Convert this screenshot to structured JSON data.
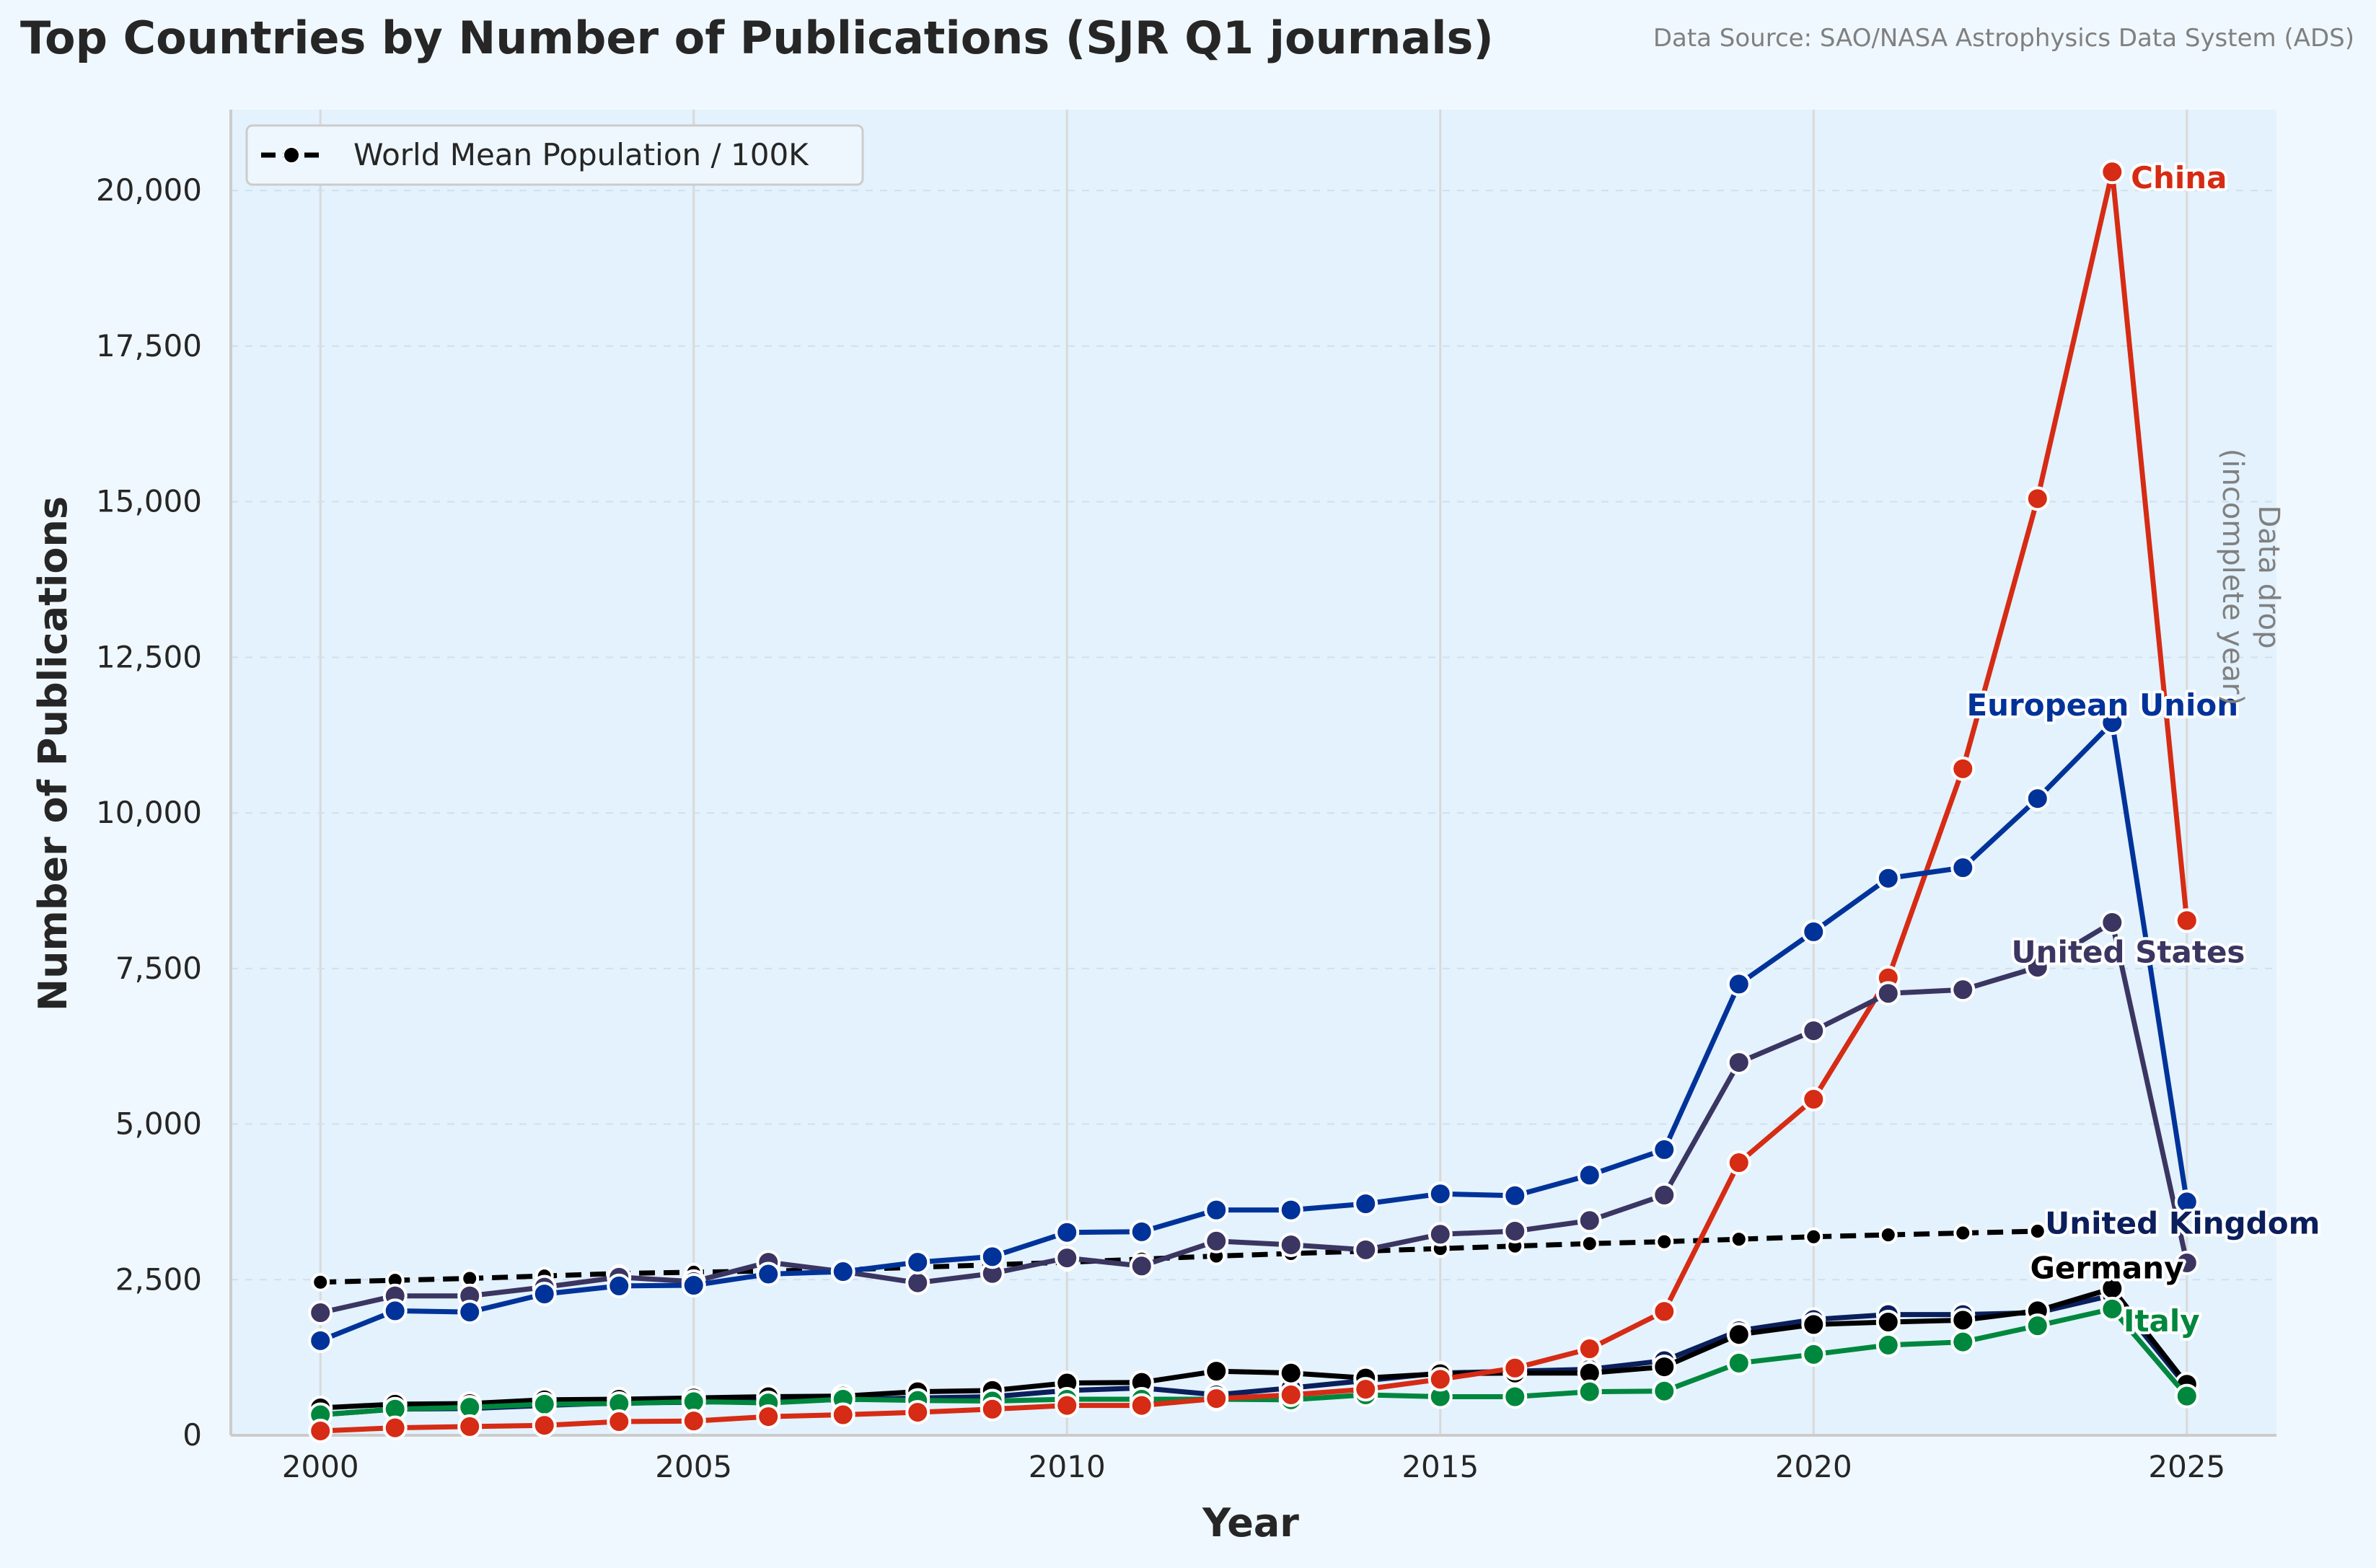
{
  "chart_data": {
    "type": "line",
    "title": "Top Countries by Number of Publications (SJR Q1 journals)",
    "source": "Data Source: SAO/NASA Astrophysics Data System (ADS)",
    "xlabel": "Year",
    "ylabel": "Number of Publications",
    "xlim": [
      1998.8,
      2026.2
    ],
    "ylim": [
      0,
      21300
    ],
    "x_ticks": [
      "2000",
      "2005",
      "2010",
      "2015",
      "2020",
      "2025"
    ],
    "y_ticks": [
      "0",
      "2,500",
      "5,000",
      "7,500",
      "10,000",
      "12,500",
      "15,000",
      "17,500",
      "20,000"
    ],
    "grid": true,
    "legend": {
      "position": "top-left",
      "entries": [
        "World Mean Population / 100K"
      ]
    },
    "annotation": {
      "lines": [
        "Data drop",
        "(incomplete year)"
      ]
    },
    "series": [
      {
        "name": "World Mean Population / 100K",
        "color": "#000000",
        "dashed": true,
        "x": [
          2000,
          2001,
          2002,
          2003,
          2004,
          2005,
          2006,
          2007,
          2008,
          2009,
          2010,
          2011,
          2012,
          2013,
          2014,
          2015,
          2016,
          2017,
          2018,
          2019,
          2020,
          2021,
          2022,
          2023
        ],
        "values": [
          2460,
          2490,
          2520,
          2560,
          2600,
          2620,
          2640,
          2660,
          2700,
          2740,
          2780,
          2830,
          2880,
          2920,
          2960,
          3000,
          3040,
          3080,
          3110,
          3150,
          3190,
          3220,
          3250,
          3280
        ]
      },
      {
        "name": "United Kingdom",
        "color": "#0a1f5c",
        "x": [
          2000,
          2001,
          2002,
          2003,
          2004,
          2005,
          2006,
          2007,
          2008,
          2009,
          2010,
          2011,
          2012,
          2013,
          2014,
          2015,
          2016,
          2017,
          2018,
          2019,
          2020,
          2021,
          2022,
          2023,
          2024,
          2025
        ],
        "values": [
          330,
          420,
          430,
          480,
          520,
          530,
          560,
          570,
          600,
          620,
          720,
          760,
          650,
          760,
          880,
          1000,
          1030,
          1060,
          1200,
          1680,
          1860,
          1940,
          1940,
          1970,
          2250,
          780
        ]
      },
      {
        "name": "Germany",
        "color": "#000000",
        "x": [
          2000,
          2001,
          2002,
          2003,
          2004,
          2005,
          2006,
          2007,
          2008,
          2009,
          2010,
          2011,
          2012,
          2013,
          2014,
          2015,
          2016,
          2017,
          2018,
          2019,
          2020,
          2021,
          2022,
          2023,
          2024,
          2025
        ],
        "values": [
          440,
          500,
          510,
          570,
          580,
          600,
          620,
          630,
          700,
          720,
          840,
          850,
          1030,
          1000,
          920,
          990,
          1000,
          1000,
          1100,
          1620,
          1780,
          1820,
          1850,
          2000,
          2360,
          820
        ]
      },
      {
        "name": "Italy",
        "color": "#00873e",
        "x": [
          2000,
          2001,
          2002,
          2003,
          2004,
          2005,
          2006,
          2007,
          2008,
          2009,
          2010,
          2011,
          2012,
          2013,
          2014,
          2015,
          2016,
          2017,
          2018,
          2019,
          2020,
          2021,
          2022,
          2023,
          2024,
          2025
        ],
        "values": [
          330,
          420,
          450,
          500,
          510,
          540,
          520,
          580,
          560,
          550,
          580,
          580,
          580,
          570,
          650,
          620,
          620,
          700,
          710,
          1160,
          1300,
          1450,
          1500,
          1760,
          2030,
          630
        ]
      },
      {
        "name": "China",
        "color": "#d62b14",
        "x": [
          2000,
          2001,
          2002,
          2003,
          2004,
          2005,
          2006,
          2007,
          2008,
          2009,
          2010,
          2011,
          2012,
          2013,
          2014,
          2015,
          2016,
          2017,
          2018,
          2019,
          2020,
          2021,
          2022,
          2023,
          2024,
          2025
        ],
        "values": [
          70,
          120,
          140,
          160,
          220,
          230,
          300,
          330,
          370,
          420,
          480,
          480,
          590,
          650,
          740,
          900,
          1080,
          1390,
          1990,
          4380,
          5400,
          7350,
          10710,
          15050,
          20300,
          8270
        ]
      },
      {
        "name": "United States",
        "color": "#3b3562",
        "x": [
          2000,
          2001,
          2002,
          2003,
          2004,
          2005,
          2006,
          2007,
          2008,
          2009,
          2010,
          2011,
          2012,
          2013,
          2014,
          2015,
          2016,
          2017,
          2018,
          2019,
          2020,
          2021,
          2022,
          2023,
          2024,
          2025
        ],
        "values": [
          1970,
          2240,
          2240,
          2380,
          2540,
          2470,
          2780,
          2630,
          2450,
          2600,
          2850,
          2720,
          3120,
          3060,
          2980,
          3230,
          3280,
          3450,
          3860,
          5990,
          6500,
          7100,
          7160,
          7520,
          8240,
          2770
        ]
      },
      {
        "name": "European Union",
        "color": "#003399",
        "x": [
          2000,
          2001,
          2002,
          2003,
          2004,
          2005,
          2006,
          2007,
          2008,
          2009,
          2010,
          2011,
          2012,
          2013,
          2014,
          2015,
          2016,
          2017,
          2018,
          2019,
          2020,
          2021,
          2022,
          2023,
          2024,
          2025
        ],
        "values": [
          1520,
          2000,
          1980,
          2270,
          2400,
          2410,
          2590,
          2630,
          2780,
          2870,
          3260,
          3270,
          3620,
          3620,
          3720,
          3880,
          3850,
          4180,
          4590,
          7250,
          8090,
          8950,
          9120,
          10230,
          11450,
          3750
        ]
      }
    ],
    "end_labels": [
      {
        "text": "China",
        "color": "#d62b14",
        "x": 2024.25,
        "y": 20200,
        "anchor": "start"
      },
      {
        "text": "European Union",
        "color": "#003399",
        "x": 2022.05,
        "y": 11730,
        "anchor": "start"
      },
      {
        "text": "United States",
        "color": "#3b3562",
        "x": 2022.65,
        "y": 7760,
        "anchor": "start"
      },
      {
        "text": "United Kingdom",
        "color": "#0a1f5c",
        "x": 2023.1,
        "y": 3400,
        "anchor": "start"
      },
      {
        "text": "Germany",
        "color": "#000000",
        "x": 2022.9,
        "y": 2680,
        "anchor": "start"
      },
      {
        "text": "Italy",
        "color": "#00873e",
        "x": 2024.15,
        "y": 1830,
        "anchor": "start"
      }
    ]
  }
}
